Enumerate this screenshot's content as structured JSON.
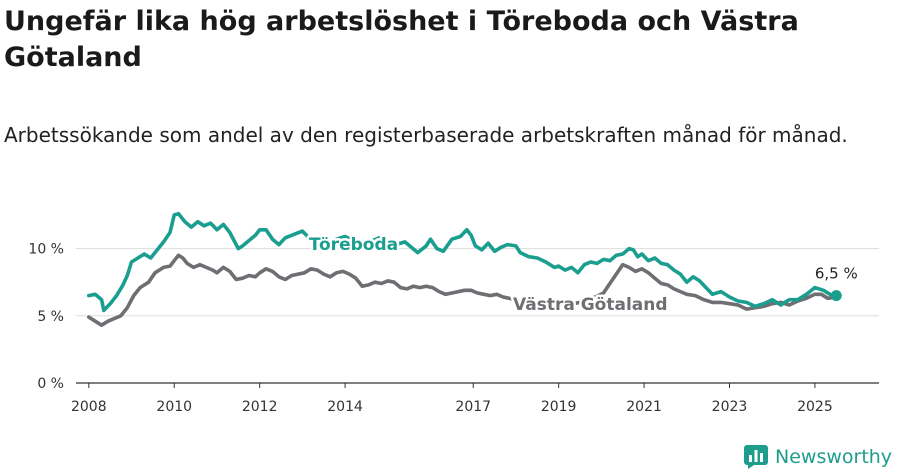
{
  "title": "Ungefär lika hög arbetslöshet i Töreboda och Västra Götaland",
  "subtitle": "Arbetssökande som andel av den registerbaserade arbetskraften månad för månad.",
  "brand": {
    "name": "Newsworthy",
    "icon": "bar-chart-logo-icon"
  },
  "colors": {
    "toreboda": "#1a9e8f",
    "vastra_gotaland": "#6e6e73",
    "grid": "#dddddd",
    "axis": "#333333"
  },
  "chart_data": {
    "type": "line",
    "title": "Ungefär lika hög arbetslöshet i Töreboda och Västra Götaland",
    "subtitle": "Arbetssökande som andel av den registerbaserade arbetskraften månad för månad.",
    "xlabel": "",
    "ylabel": "",
    "xlim": [
      2007.7,
      2026.5
    ],
    "ylim": [
      0,
      12.5
    ],
    "x_ticks": [
      {
        "value": 2008,
        "label": "2008"
      },
      {
        "value": 2010,
        "label": "2010"
      },
      {
        "value": 2012,
        "label": "2012"
      },
      {
        "value": 2014,
        "label": "2014"
      },
      {
        "value": 2017,
        "label": "2017"
      },
      {
        "value": 2019,
        "label": "2019"
      },
      {
        "value": 2021,
        "label": "2021"
      },
      {
        "value": 2023,
        "label": "2023"
      },
      {
        "value": 2025,
        "label": "2025"
      }
    ],
    "y_ticks": [
      {
        "value": 0,
        "label": "0 %"
      },
      {
        "value": 5,
        "label": "5 %"
      },
      {
        "value": 10,
        "label": "10 %"
      }
    ],
    "grid": true,
    "legend": "inline labels",
    "end_label": "6,5 %",
    "series": [
      {
        "name": "Töreboda",
        "points": [
          [
            2008.0,
            6.5
          ],
          [
            2008.15,
            6.6
          ],
          [
            2008.3,
            6.2
          ],
          [
            2008.35,
            5.4
          ],
          [
            2008.5,
            5.9
          ],
          [
            2008.65,
            6.5
          ],
          [
            2008.8,
            7.3
          ],
          [
            2008.9,
            8.0
          ],
          [
            2009.0,
            9.0
          ],
          [
            2009.15,
            9.3
          ],
          [
            2009.3,
            9.6
          ],
          [
            2009.45,
            9.3
          ],
          [
            2009.6,
            9.9
          ],
          [
            2009.75,
            10.5
          ],
          [
            2009.9,
            11.2
          ],
          [
            2010.0,
            12.5
          ],
          [
            2010.1,
            12.6
          ],
          [
            2010.25,
            12.0
          ],
          [
            2010.4,
            11.6
          ],
          [
            2010.55,
            12.0
          ],
          [
            2010.7,
            11.7
          ],
          [
            2010.85,
            11.9
          ],
          [
            2011.0,
            11.4
          ],
          [
            2011.15,
            11.8
          ],
          [
            2011.3,
            11.2
          ],
          [
            2011.4,
            10.6
          ],
          [
            2011.5,
            10.0
          ],
          [
            2011.6,
            10.2
          ],
          [
            2011.75,
            10.6
          ],
          [
            2011.9,
            11.0
          ],
          [
            2012.0,
            11.4
          ],
          [
            2012.15,
            11.4
          ],
          [
            2012.3,
            10.7
          ],
          [
            2012.45,
            10.3
          ],
          [
            2012.6,
            10.8
          ],
          [
            2013.0,
            11.3
          ],
          [
            2013.4,
            10.0
          ],
          [
            2013.6,
            10.4
          ],
          [
            2013.8,
            10.7
          ],
          [
            2014.0,
            10.9
          ],
          [
            2014.2,
            10.6
          ],
          [
            2014.5,
            10.4
          ],
          [
            2014.8,
            10.8
          ],
          [
            2015.1,
            10.2
          ],
          [
            2015.4,
            10.5
          ],
          [
            2015.55,
            10.1
          ],
          [
            2015.7,
            9.7
          ],
          [
            2015.9,
            10.2
          ],
          [
            2016.0,
            10.7
          ],
          [
            2016.15,
            10.0
          ],
          [
            2016.3,
            9.8
          ],
          [
            2016.5,
            10.7
          ],
          [
            2016.7,
            10.9
          ],
          [
            2016.85,
            11.4
          ],
          [
            2016.95,
            11.0
          ],
          [
            2017.05,
            10.2
          ],
          [
            2017.2,
            9.9
          ],
          [
            2017.35,
            10.4
          ],
          [
            2017.5,
            9.8
          ],
          [
            2017.65,
            10.1
          ],
          [
            2017.8,
            10.3
          ],
          [
            2018.0,
            10.2
          ],
          [
            2018.1,
            9.7
          ],
          [
            2018.3,
            9.4
          ],
          [
            2018.5,
            9.3
          ],
          [
            2018.7,
            9.0
          ],
          [
            2018.9,
            8.6
          ],
          [
            2019.0,
            8.7
          ],
          [
            2019.15,
            8.4
          ],
          [
            2019.3,
            8.6
          ],
          [
            2019.45,
            8.2
          ],
          [
            2019.6,
            8.8
          ],
          [
            2019.75,
            9.0
          ],
          [
            2019.9,
            8.9
          ],
          [
            2020.05,
            9.2
          ],
          [
            2020.2,
            9.1
          ],
          [
            2020.35,
            9.5
          ],
          [
            2020.5,
            9.6
          ],
          [
            2020.65,
            10.0
          ],
          [
            2020.75,
            9.9
          ],
          [
            2020.85,
            9.4
          ],
          [
            2020.95,
            9.6
          ],
          [
            2021.1,
            9.1
          ],
          [
            2021.25,
            9.3
          ],
          [
            2021.4,
            8.9
          ],
          [
            2021.55,
            8.8
          ],
          [
            2021.7,
            8.4
          ],
          [
            2021.85,
            8.1
          ],
          [
            2022.0,
            7.5
          ],
          [
            2022.15,
            7.9
          ],
          [
            2022.3,
            7.6
          ],
          [
            2022.45,
            7.1
          ],
          [
            2022.6,
            6.6
          ],
          [
            2022.8,
            6.8
          ],
          [
            2023.0,
            6.4
          ],
          [
            2023.2,
            6.1
          ],
          [
            2023.4,
            6.0
          ],
          [
            2023.6,
            5.7
          ],
          [
            2023.8,
            5.9
          ],
          [
            2024.0,
            6.2
          ],
          [
            2024.2,
            5.8
          ],
          [
            2024.4,
            6.2
          ],
          [
            2024.6,
            6.2
          ],
          [
            2024.8,
            6.6
          ],
          [
            2025.0,
            7.1
          ],
          [
            2025.2,
            6.9
          ],
          [
            2025.35,
            6.6
          ],
          [
            2025.5,
            6.5
          ]
        ]
      },
      {
        "name": "Västra Götaland",
        "points": [
          [
            2008.0,
            4.9
          ],
          [
            2008.15,
            4.6
          ],
          [
            2008.3,
            4.3
          ],
          [
            2008.45,
            4.6
          ],
          [
            2008.6,
            4.8
          ],
          [
            2008.75,
            5.0
          ],
          [
            2008.9,
            5.6
          ],
          [
            2009.05,
            6.5
          ],
          [
            2009.2,
            7.1
          ],
          [
            2009.4,
            7.5
          ],
          [
            2009.55,
            8.2
          ],
          [
            2009.75,
            8.6
          ],
          [
            2009.9,
            8.7
          ],
          [
            2010.0,
            9.1
          ],
          [
            2010.1,
            9.5
          ],
          [
            2010.2,
            9.3
          ],
          [
            2010.3,
            8.9
          ],
          [
            2010.45,
            8.6
          ],
          [
            2010.6,
            8.8
          ],
          [
            2010.75,
            8.6
          ],
          [
            2010.9,
            8.4
          ],
          [
            2011.0,
            8.2
          ],
          [
            2011.15,
            8.6
          ],
          [
            2011.3,
            8.3
          ],
          [
            2011.45,
            7.7
          ],
          [
            2011.6,
            7.8
          ],
          [
            2011.75,
            8.0
          ],
          [
            2011.9,
            7.9
          ],
          [
            2012.0,
            8.2
          ],
          [
            2012.15,
            8.5
          ],
          [
            2012.3,
            8.3
          ],
          [
            2012.45,
            7.9
          ],
          [
            2012.6,
            7.7
          ],
          [
            2012.75,
            8.0
          ],
          [
            2012.9,
            8.1
          ],
          [
            2013.05,
            8.2
          ],
          [
            2013.2,
            8.5
          ],
          [
            2013.35,
            8.4
          ],
          [
            2013.5,
            8.1
          ],
          [
            2013.65,
            7.9
          ],
          [
            2013.8,
            8.2
          ],
          [
            2013.95,
            8.3
          ],
          [
            2014.1,
            8.1
          ],
          [
            2014.25,
            7.8
          ],
          [
            2014.4,
            7.2
          ],
          [
            2014.55,
            7.3
          ],
          [
            2014.7,
            7.5
          ],
          [
            2014.85,
            7.4
          ],
          [
            2015.0,
            7.6
          ],
          [
            2015.15,
            7.5
          ],
          [
            2015.3,
            7.1
          ],
          [
            2015.45,
            7.0
          ],
          [
            2015.6,
            7.2
          ],
          [
            2015.75,
            7.1
          ],
          [
            2015.9,
            7.2
          ],
          [
            2016.05,
            7.1
          ],
          [
            2016.2,
            6.8
          ],
          [
            2016.35,
            6.6
          ],
          [
            2016.5,
            6.7
          ],
          [
            2016.65,
            6.8
          ],
          [
            2016.8,
            6.9
          ],
          [
            2016.95,
            6.9
          ],
          [
            2017.1,
            6.7
          ],
          [
            2017.25,
            6.6
          ],
          [
            2017.4,
            6.5
          ],
          [
            2017.55,
            6.6
          ],
          [
            2017.7,
            6.4
          ],
          [
            2018.0,
            6.2
          ],
          [
            2018.3,
            6.0
          ],
          [
            2018.6,
            5.9
          ],
          [
            2018.9,
            5.7
          ],
          [
            2019.2,
            5.8
          ],
          [
            2019.5,
            6.0
          ],
          [
            2019.8,
            6.3
          ],
          [
            2020.05,
            6.7
          ],
          [
            2020.2,
            7.4
          ],
          [
            2020.35,
            8.1
          ],
          [
            2020.5,
            8.8
          ],
          [
            2020.65,
            8.6
          ],
          [
            2020.8,
            8.3
          ],
          [
            2020.95,
            8.5
          ],
          [
            2021.1,
            8.2
          ],
          [
            2021.25,
            7.8
          ],
          [
            2021.4,
            7.4
          ],
          [
            2021.55,
            7.3
          ],
          [
            2021.7,
            7.0
          ],
          [
            2021.85,
            6.8
          ],
          [
            2022.0,
            6.6
          ],
          [
            2022.2,
            6.5
          ],
          [
            2022.4,
            6.2
          ],
          [
            2022.6,
            6.0
          ],
          [
            2022.8,
            6.0
          ],
          [
            2023.0,
            5.9
          ],
          [
            2023.2,
            5.8
          ],
          [
            2023.4,
            5.5
          ],
          [
            2023.6,
            5.6
          ],
          [
            2023.8,
            5.7
          ],
          [
            2024.0,
            5.9
          ],
          [
            2024.2,
            6.0
          ],
          [
            2024.4,
            5.8
          ],
          [
            2024.6,
            6.1
          ],
          [
            2024.8,
            6.3
          ],
          [
            2025.0,
            6.6
          ],
          [
            2025.15,
            6.6
          ],
          [
            2025.3,
            6.3
          ],
          [
            2025.5,
            6.4
          ]
        ]
      }
    ]
  }
}
